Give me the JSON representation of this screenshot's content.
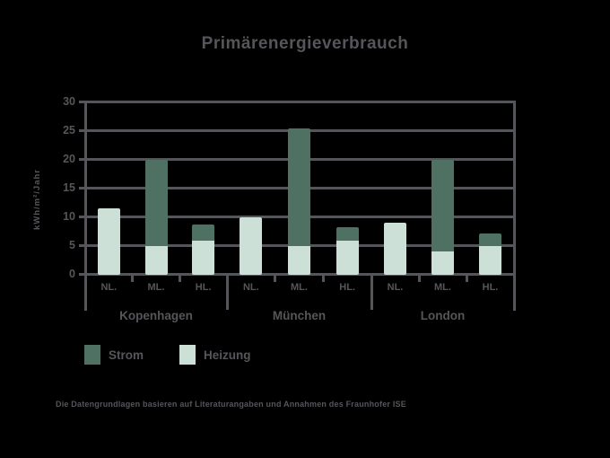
{
  "title": "Primärenergieverbrauch",
  "colors": {
    "strom": "#4F7164",
    "heizung": "#CDE0D7",
    "axis": "#55565A",
    "background": "#000000"
  },
  "legend": [
    {
      "label": "Strom",
      "color": "#4F7164"
    },
    {
      "label": "Heizung",
      "color": "#CDE0D7"
    }
  ],
  "footnote": "Die Datengrundlagen basieren auf Literaturangaben und Annahmen des Fraunhofer ISE",
  "chart_data": {
    "type": "bar",
    "stacked": true,
    "title": "Primärenergieverbrauch",
    "xlabel": "",
    "ylabel": "kWh/m²/Jahr",
    "ylim": [
      0,
      30
    ],
    "yticks": [
      0,
      5,
      10,
      15,
      20,
      25,
      30
    ],
    "grid": true,
    "legend_entries": [
      "Strom",
      "Heizung"
    ],
    "legend_position": "bottom-left",
    "series_note": "each bar stacked: Heizung (bottom, light) + Strom (top, dark)",
    "groups": [
      {
        "label": "Kopenhagen",
        "bars": [
          {
            "label": "NL.",
            "heizung": 11.5,
            "strom": 0
          },
          {
            "label": "ML.",
            "heizung": 5,
            "strom": 15
          },
          {
            "label": "HL.",
            "heizung": 6,
            "strom": 2.7
          }
        ]
      },
      {
        "label": "München",
        "bars": [
          {
            "label": "NL.",
            "heizung": 10,
            "strom": 0
          },
          {
            "label": "ML.",
            "heizung": 5,
            "strom": 20.5
          },
          {
            "label": "HL.",
            "heizung": 6,
            "strom": 2.3
          }
        ]
      },
      {
        "label": "London",
        "bars": [
          {
            "label": "NL.",
            "heizung": 9,
            "strom": 0
          },
          {
            "label": "ML.",
            "heizung": 4,
            "strom": 16
          },
          {
            "label": "HL.",
            "heizung": 5,
            "strom": 2.2
          }
        ]
      }
    ]
  }
}
